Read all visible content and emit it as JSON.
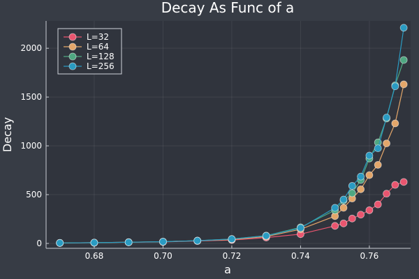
{
  "chart_data": {
    "type": "line",
    "title": "Decay As Func of a",
    "xlabel": "a",
    "ylabel": "Decay",
    "xlim": [
      0.666,
      0.772
    ],
    "ylim": [
      -50,
      2280
    ],
    "xticks": [
      0.68,
      0.7,
      0.72,
      0.74,
      0.76
    ],
    "xtick_labels": [
      "0.68",
      "0.70",
      "0.72",
      "0.74",
      "0.76"
    ],
    "yticks": [
      0,
      500,
      1000,
      1500,
      2000
    ],
    "ytick_labels": [
      "0",
      "500",
      "1000",
      "1500",
      "2000"
    ],
    "grid": true,
    "legend_position": "top-left",
    "background": "#30343d",
    "page_background": "#373c45",
    "x": [
      0.67,
      0.68,
      0.69,
      0.7,
      0.71,
      0.72,
      0.73,
      0.74,
      0.75,
      0.7525,
      0.755,
      0.7575,
      0.76,
      0.7625,
      0.765,
      0.7675,
      0.77
    ],
    "series": [
      {
        "name": "L=32",
        "color": "#e9556f",
        "values": [
          5,
          8,
          12,
          15,
          25,
          35,
          60,
          95,
          180,
          205,
          255,
          295,
          340,
          400,
          510,
          600,
          630
        ]
      },
      {
        "name": "L=64",
        "color": "#e3a66a",
        "values": [
          5,
          8,
          12,
          18,
          28,
          40,
          70,
          145,
          280,
          365,
          460,
          555,
          700,
          805,
          1025,
          1230,
          1630
        ]
      },
      {
        "name": "L=128",
        "color": "#4fa882",
        "values": [
          5,
          8,
          12,
          18,
          28,
          45,
          80,
          165,
          340,
          440,
          515,
          650,
          870,
          1035,
          1280,
          1620,
          1880
        ]
      },
      {
        "name": "L=256",
        "color": "#2a9bc2",
        "values": [
          5,
          8,
          12,
          18,
          28,
          45,
          78,
          158,
          365,
          450,
          590,
          685,
          900,
          975,
          1290,
          1610,
          2210
        ]
      }
    ]
  }
}
